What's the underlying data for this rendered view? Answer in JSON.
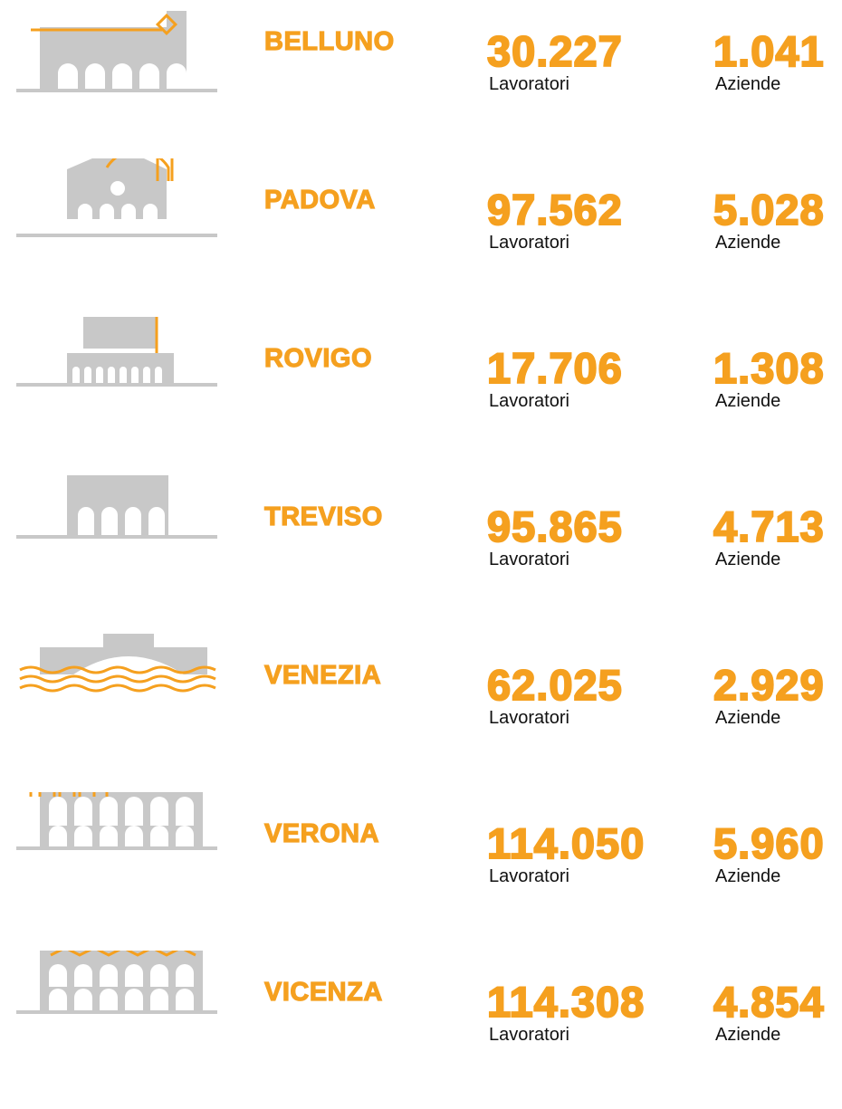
{
  "provinces": [
    {
      "name": "BELLUNO",
      "workers": "30.227",
      "workers_label": "Lavoratori",
      "companies": "1.041",
      "companies_label": "Aziende"
    },
    {
      "name": "PADOVA",
      "workers": "97.562",
      "workers_label": "Lavoratori",
      "companies": "5.028",
      "companies_label": "Aziende"
    },
    {
      "name": "ROVIGO",
      "workers": "17.706",
      "workers_label": "Lavoratori",
      "companies": "1.308",
      "companies_label": "Aziende"
    },
    {
      "name": "TREVISO",
      "workers": "95.865",
      "workers_label": "Lavoratori",
      "companies": "4.713",
      "companies_label": "Aziende"
    },
    {
      "name": "VENEZIA",
      "workers": "62.025",
      "workers_label": "Lavoratori",
      "companies": "2.929",
      "companies_label": "Aziende"
    },
    {
      "name": "VERONA",
      "workers": "114.050",
      "workers_label": "Lavoratori",
      "companies": "5.960",
      "companies_label": "Aziende"
    },
    {
      "name": "VICENZA",
      "workers": "114.308",
      "workers_label": "Lavoratori",
      "companies": "4.854",
      "companies_label": "Aziende"
    }
  ]
}
